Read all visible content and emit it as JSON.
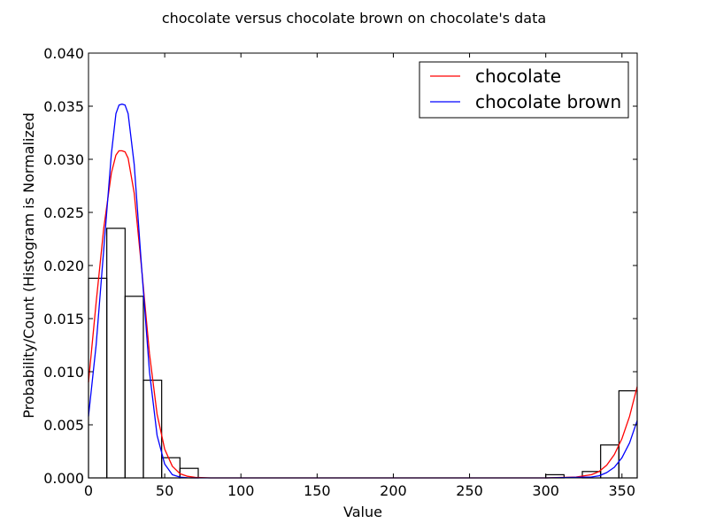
{
  "chart_data": {
    "type": "histogram",
    "title": "chocolate versus chocolate brown on chocolate's data",
    "xlabel": "Value",
    "ylabel": "Probability/Count (Histogram is Normalized",
    "xlim": [
      0,
      360
    ],
    "ylim": [
      0,
      0.04
    ],
    "xticks": [
      0,
      50,
      100,
      150,
      200,
      250,
      300,
      350
    ],
    "yticks": [
      0.0,
      0.005,
      0.01,
      0.015,
      0.02,
      0.025,
      0.03,
      0.035,
      0.04
    ],
    "ytick_labels": [
      "0.000",
      "0.005",
      "0.010",
      "0.015",
      "0.020",
      "0.025",
      "0.030",
      "0.035",
      "0.040"
    ],
    "grid": false,
    "legend_position": "top-right",
    "histogram": {
      "bin_edges": [
        0,
        12,
        24,
        36,
        48,
        60,
        72,
        84,
        96,
        108,
        120,
        132,
        144,
        156,
        168,
        180,
        192,
        204,
        216,
        228,
        240,
        252,
        264,
        276,
        288,
        300,
        312,
        324,
        336,
        348,
        360
      ],
      "values": [
        0.0188,
        0.0235,
        0.0171,
        0.0092,
        0.0019,
        0.0009,
        0,
        0,
        0,
        0,
        0,
        0,
        0,
        0,
        0,
        0,
        0,
        0,
        0,
        0,
        0,
        0,
        0,
        0,
        0,
        0.0003,
        0,
        0.0006,
        0.0031,
        0.0082
      ]
    },
    "series": [
      {
        "name": "chocolate",
        "color": "#ff0000",
        "x": [
          0,
          5,
          10,
          15,
          18,
          20,
          22,
          24,
          26,
          30,
          35,
          40,
          45,
          50,
          55,
          60,
          65,
          70,
          80,
          100,
          150,
          200,
          250,
          300,
          320,
          330,
          335,
          340,
          345,
          350,
          355,
          360
        ],
        "y": [
          0.009,
          0.0165,
          0.0235,
          0.0287,
          0.0304,
          0.0308,
          0.0308,
          0.0307,
          0.0301,
          0.0268,
          0.0195,
          0.0117,
          0.006,
          0.0027,
          0.0011,
          0.0004,
          0.00015,
          5e-05,
          0,
          0,
          0,
          0,
          0,
          0,
          8e-05,
          0.0003,
          0.0006,
          0.0012,
          0.0022,
          0.0037,
          0.0058,
          0.0086
        ]
      },
      {
        "name": "chocolate brown",
        "color": "#0000ff",
        "x": [
          0,
          5,
          10,
          15,
          18,
          20,
          22,
          24,
          26,
          30,
          35,
          40,
          45,
          50,
          55,
          60,
          65,
          70,
          80,
          100,
          150,
          200,
          250,
          300,
          330,
          335,
          340,
          345,
          350,
          355,
          360
        ],
        "y": [
          0.0058,
          0.0125,
          0.0215,
          0.0305,
          0.0343,
          0.0351,
          0.0352,
          0.0351,
          0.0343,
          0.0295,
          0.0195,
          0.01,
          0.004,
          0.0013,
          0.0003,
          7e-05,
          1e-05,
          0,
          0,
          0,
          0,
          0,
          0,
          0,
          8e-05,
          0.0002,
          0.0005,
          0.001,
          0.0019,
          0.0033,
          0.0054
        ]
      }
    ]
  }
}
